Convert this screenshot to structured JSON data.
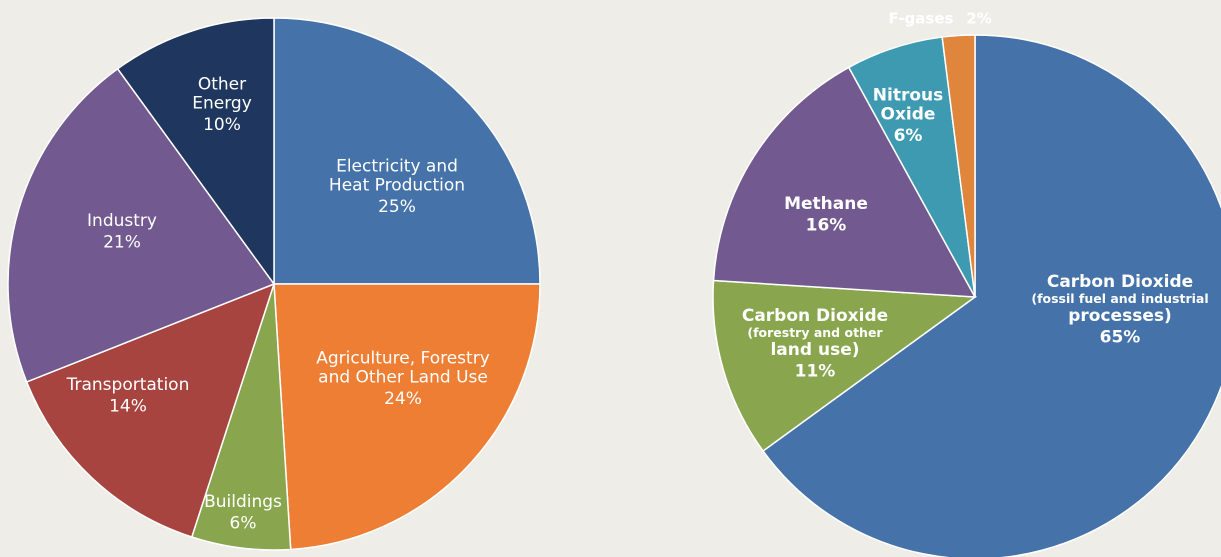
{
  "chart_data": [
    {
      "type": "pie",
      "categories": [
        "Electricity and\nHeat Production",
        "Agriculture, Forestry\nand Other Land Use",
        "Buildings",
        "Transportation",
        "Industry",
        "Other\nEnergy"
      ],
      "values": [
        25,
        24,
        6,
        14,
        21,
        10
      ],
      "value_labels": [
        "25%",
        "24%",
        "6%",
        "14%",
        "21%",
        "10%"
      ],
      "colors": [
        "#4573a9",
        "#ed7e33",
        "#89a54d",
        "#a8443f",
        "#72598f",
        "#1f365e"
      ]
    },
    {
      "type": "pie",
      "categories": [
        "Carbon Dioxide\n(fossil fuel and industrial\nprocesses)",
        "Carbon Dioxide\n(forestry and other\nland use)",
        "Methane",
        "Nitrous\nOxide",
        "F-gases"
      ],
      "values": [
        65,
        11,
        16,
        6,
        2
      ],
      "value_labels": [
        "65%",
        "11%",
        "16%",
        "6%",
        "2%"
      ],
      "colors": [
        "#4573a9",
        "#89a54d",
        "#72598f",
        "#3e9ab1",
        "#e0853c"
      ]
    }
  ]
}
